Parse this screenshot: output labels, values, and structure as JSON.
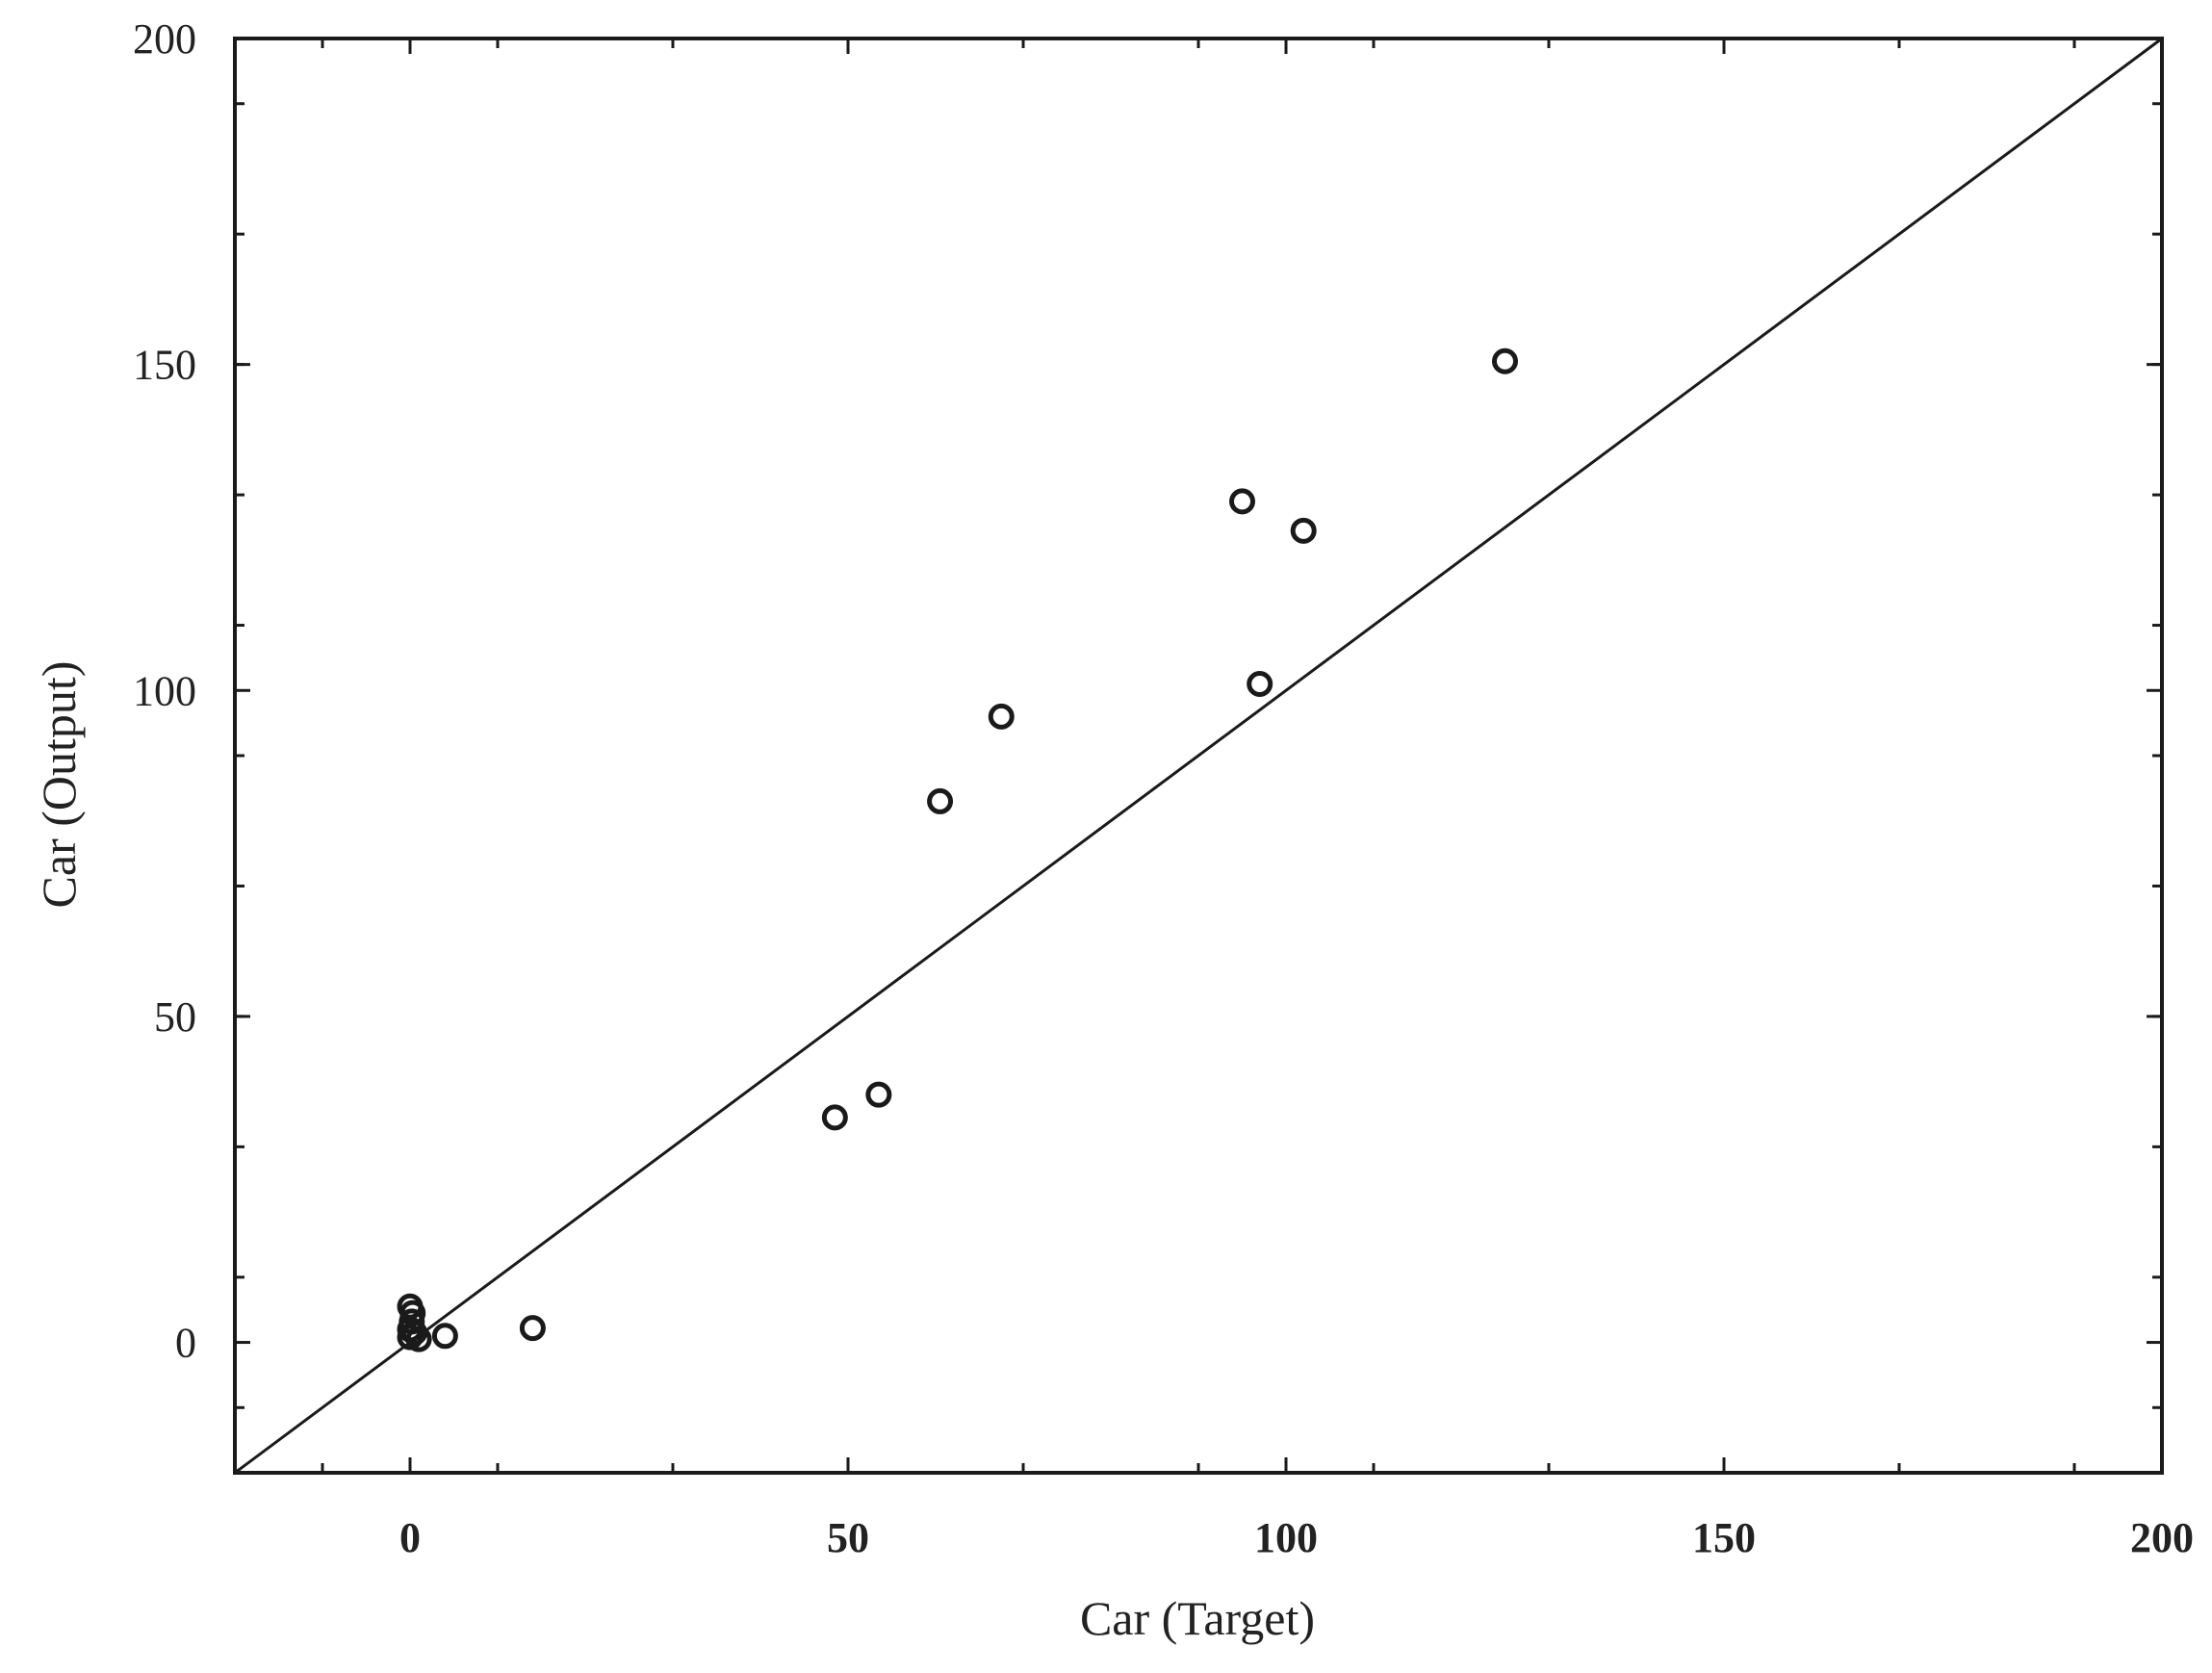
{
  "chart_data": {
    "type": "scatter",
    "title": "",
    "xlabel": "Car (Target)",
    "ylabel": "Car (Output)",
    "xlim": [
      -20,
      200
    ],
    "ylim": [
      -20,
      200
    ],
    "x_ticks": [
      0,
      50,
      100,
      150,
      200
    ],
    "y_ticks": [
      0,
      50,
      100,
      150,
      200
    ],
    "x_tick_labels": [
      "0",
      "50",
      "100",
      "150",
      "200"
    ],
    "y_tick_labels": [
      "0",
      "50",
      "100",
      "150",
      "200"
    ],
    "grid": false,
    "legend": "none",
    "reference_line": {
      "type": "identity",
      "from": [
        -20,
        -20
      ],
      "to": [
        200,
        200
      ]
    },
    "marker": {
      "shape": "open-circle",
      "color": "#1a1a1a"
    },
    "points": [
      {
        "x": 0,
        "y": 5.5
      },
      {
        "x": 0.3,
        "y": 4.5
      },
      {
        "x": 0.2,
        "y": 3.2
      },
      {
        "x": 0,
        "y": 2
      },
      {
        "x": 0.5,
        "y": 1.5
      },
      {
        "x": 0,
        "y": 0.8
      },
      {
        "x": 1,
        "y": 0.5
      },
      {
        "x": 4,
        "y": 1
      },
      {
        "x": 14,
        "y": 2.2
      },
      {
        "x": 48.5,
        "y": 34.5
      },
      {
        "x": 53.5,
        "y": 38
      },
      {
        "x": 60.5,
        "y": 83
      },
      {
        "x": 67.5,
        "y": 96
      },
      {
        "x": 95,
        "y": 129
      },
      {
        "x": 97,
        "y": 101
      },
      {
        "x": 102,
        "y": 124.5
      },
      {
        "x": 125,
        "y": 150.5
      }
    ]
  }
}
